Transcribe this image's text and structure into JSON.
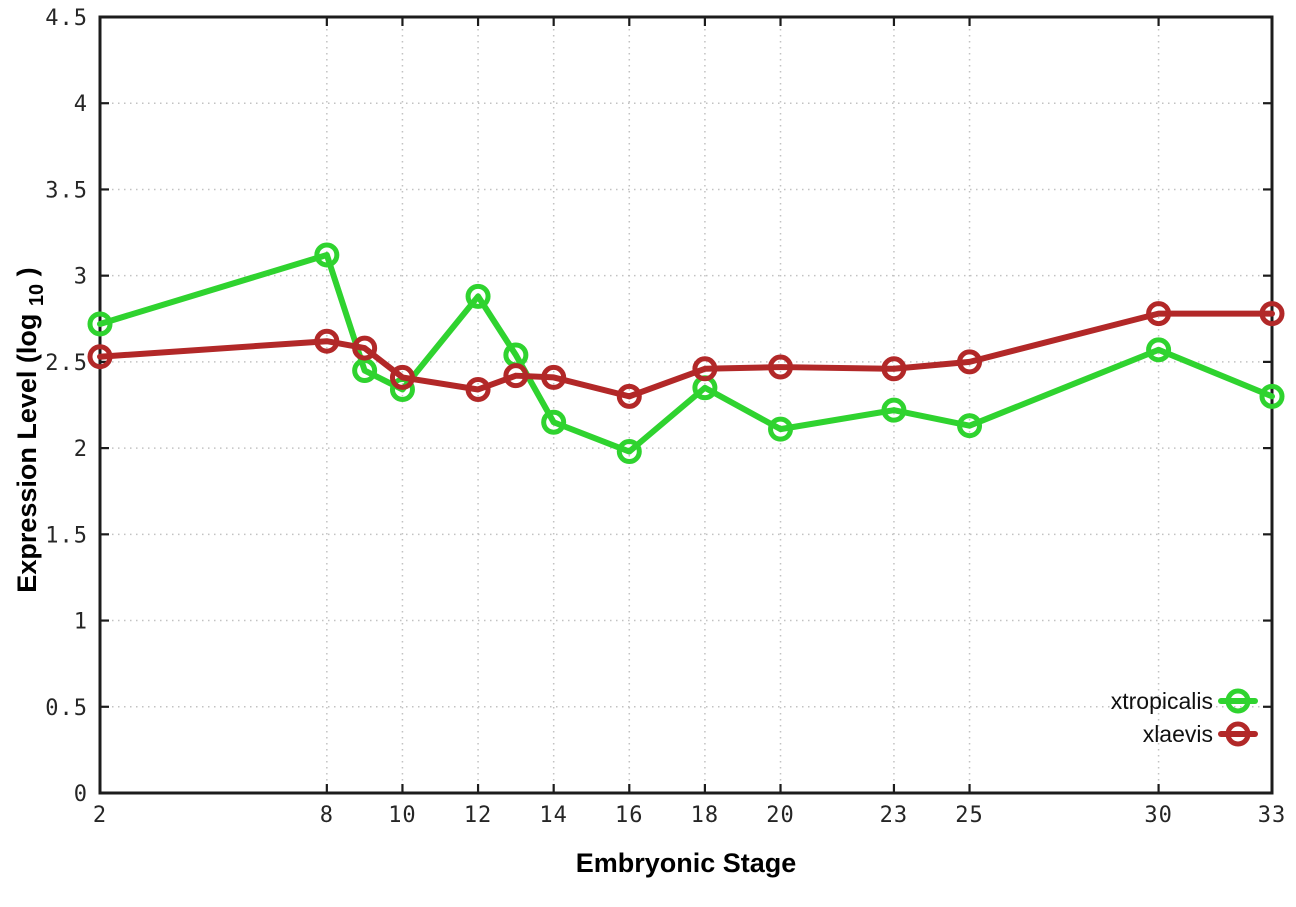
{
  "figure": {
    "background": "#ffffff",
    "axis_color": "#1c1c1c",
    "grid_color": "#c2c2c2",
    "tick_text_color": "#262626"
  },
  "chart_data": {
    "type": "line",
    "title": "",
    "xlabel": "Embryonic Stage",
    "ylabel": "Expression Level (log10)",
    "ylabel_parts": {
      "pre": "Expression Level (log",
      "sub": "10",
      "post": ")"
    },
    "x": [
      2,
      8,
      9,
      10,
      12,
      13,
      14,
      16,
      18,
      20,
      23,
      25,
      30,
      33
    ],
    "xlim": [
      2,
      33
    ],
    "ylim": [
      0,
      4.5
    ],
    "xtick_values": [
      2,
      8,
      10,
      12,
      14,
      16,
      18,
      20,
      23,
      25,
      30,
      33
    ],
    "xtick_labels": [
      "2",
      "8",
      "10",
      "12",
      "14",
      "16",
      "18",
      "20",
      "23",
      "25",
      "30",
      "33"
    ],
    "ytick_values": [
      0,
      0.5,
      1,
      1.5,
      2,
      2.5,
      3,
      3.5,
      4,
      4.5
    ],
    "ytick_labels": [
      "0",
      "0.5",
      "1",
      "1.5",
      "2",
      "2.5",
      "3",
      "3.5",
      "4",
      "4.5"
    ],
    "grid": true,
    "grid_style": "dotted",
    "legend_position": "bottom-right",
    "marker": "open-circle",
    "series": [
      {
        "name": "xtropicalis",
        "color": "#2fd32f",
        "values": [
          2.72,
          3.12,
          2.45,
          2.34,
          2.88,
          2.54,
          2.15,
          1.98,
          2.35,
          2.11,
          2.22,
          2.13,
          2.57,
          2.3
        ]
      },
      {
        "name": "xlaevis",
        "color": "#b22828",
        "values": [
          2.53,
          2.62,
          2.58,
          2.41,
          2.34,
          2.42,
          2.41,
          2.3,
          2.46,
          2.47,
          2.46,
          2.5,
          2.78,
          2.78
        ]
      }
    ]
  }
}
